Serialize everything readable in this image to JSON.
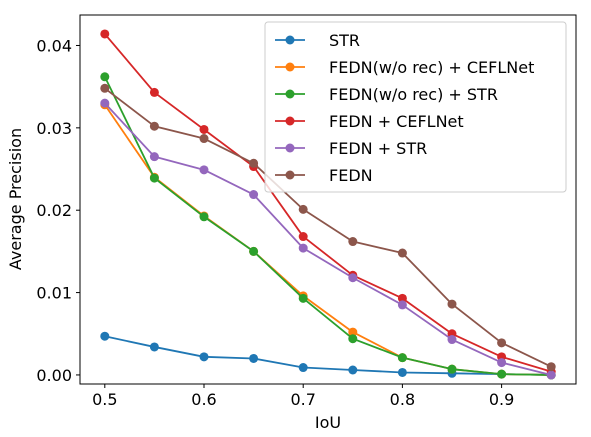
{
  "chart_data": {
    "type": "line",
    "title": "",
    "xlabel": "IoU",
    "ylabel": "Average Precision",
    "xlim": [
      0.475,
      0.975
    ],
    "ylim": [
      -0.0011,
      0.0437
    ],
    "x_ticks": [
      0.5,
      0.6,
      0.7,
      0.8,
      0.9
    ],
    "x_tick_labels": [
      "0.5",
      "0.6",
      "0.7",
      "0.8",
      "0.9"
    ],
    "y_ticks": [
      0.0,
      0.01,
      0.02,
      0.03,
      0.04
    ],
    "y_tick_labels": [
      "0.00",
      "0.01",
      "0.02",
      "0.03",
      "0.04"
    ],
    "grid": false,
    "legend_position": "top-right",
    "x": [
      0.5,
      0.55,
      0.6,
      0.65,
      0.7,
      0.75,
      0.8,
      0.85,
      0.9,
      0.95
    ],
    "series": [
      {
        "name": "STR",
        "color": "#1f77b4",
        "values": [
          0.0047,
          0.0034,
          0.0022,
          0.002,
          0.0009,
          0.0006,
          0.0003,
          0.0002,
          0.0001,
          0.0
        ]
      },
      {
        "name": "FEDN(w/o rec) + CEFLNet",
        "color": "#ff7f0e",
        "values": [
          0.0328,
          0.024,
          0.0193,
          0.015,
          0.0096,
          0.0052,
          0.0021,
          0.0007,
          0.0001,
          0.0
        ]
      },
      {
        "name": "FEDN(w/o rec) + STR",
        "color": "#2ca02c",
        "values": [
          0.0362,
          0.0239,
          0.0192,
          0.015,
          0.0093,
          0.0044,
          0.0021,
          0.0007,
          0.0001,
          0.0
        ]
      },
      {
        "name": "FEDN + CEFLNet",
        "color": "#d62728",
        "values": [
          0.0414,
          0.0343,
          0.0298,
          0.0253,
          0.0168,
          0.0121,
          0.0093,
          0.005,
          0.0022,
          0.0004
        ]
      },
      {
        "name": "FEDN + STR",
        "color": "#9467bd",
        "values": [
          0.033,
          0.0265,
          0.0249,
          0.0219,
          0.0154,
          0.0118,
          0.0085,
          0.0043,
          0.0015,
          0.0
        ]
      },
      {
        "name": "FEDN",
        "color": "#8c564b",
        "values": [
          0.0348,
          0.0302,
          0.0287,
          0.0257,
          0.0201,
          0.0162,
          0.0148,
          0.0086,
          0.0039,
          0.001
        ]
      }
    ]
  }
}
